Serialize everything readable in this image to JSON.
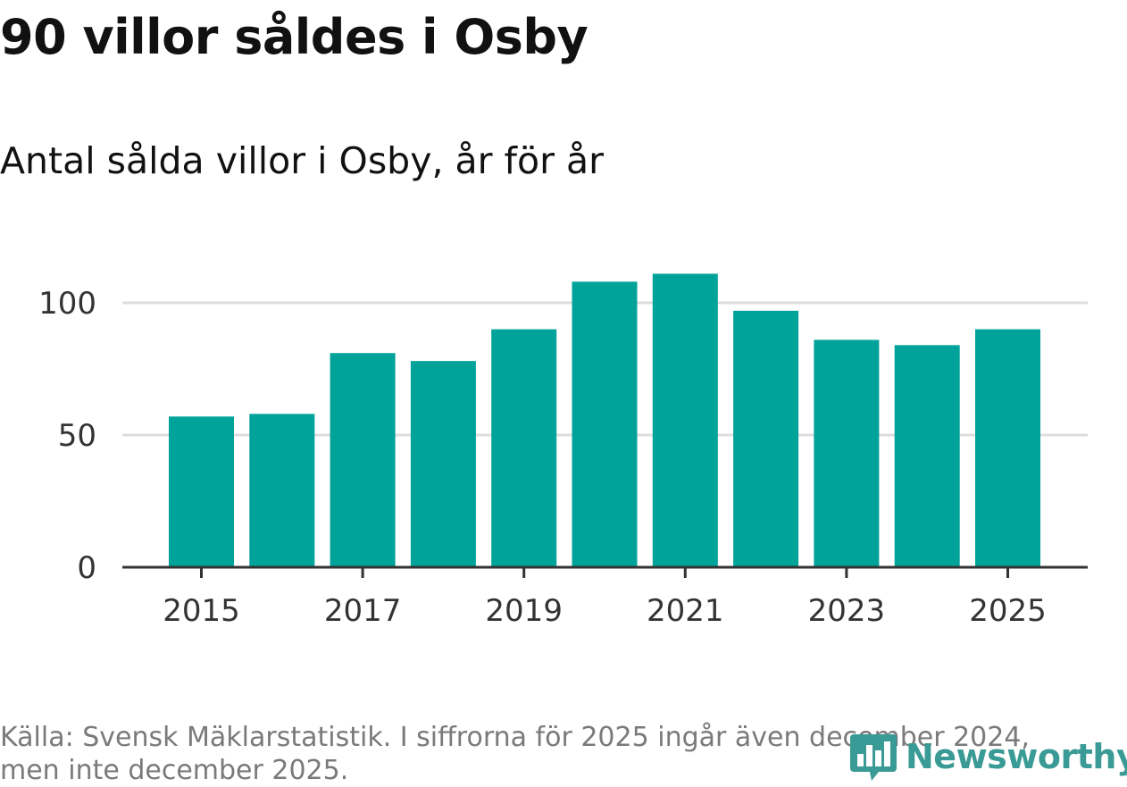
{
  "chart_data": {
    "type": "bar",
    "title": "90 villor såldes i Osby",
    "subtitle": "Antal sålda villor i Osby, år för år",
    "categories": [
      "2015",
      "2016",
      "2017",
      "2018",
      "2019",
      "2020",
      "2021",
      "2022",
      "2023",
      "2024",
      "2025"
    ],
    "values": [
      57,
      58,
      81,
      78,
      90,
      108,
      111,
      97,
      86,
      84,
      90
    ],
    "x_tick_labels": [
      "2015",
      "2017",
      "2019",
      "2021",
      "2023",
      "2025"
    ],
    "y_ticks": [
      0,
      50,
      100
    ],
    "y_tick_labels": [
      "0",
      "50",
      "100"
    ],
    "ylim": [
      0,
      115
    ],
    "xlabel": "",
    "ylabel": "",
    "grid": true,
    "bar_color": "#00a39a",
    "grid_color": "#dddddd",
    "axis_color": "#333333"
  },
  "footer": {
    "source": "Källa: Svensk Mäklarstatistik. I siffrorna för 2025 ingår även december 2024, men inte december 2025.",
    "logo_text": "Newsworthy",
    "logo_icon": "newsworthy-chart-icon",
    "logo_color": "#3a9a95"
  }
}
